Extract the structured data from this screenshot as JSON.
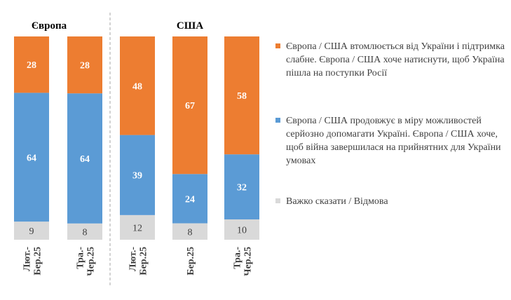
{
  "chart_data": {
    "type": "bar",
    "stacked": true,
    "groups": [
      {
        "title": "Європа",
        "categories": [
          "Лют.-Бер.25",
          "Тра.-Чер.25"
        ]
      },
      {
        "title": "США",
        "categories": [
          "Лют.-Бер.25",
          "Бер.25",
          "Тра.-Чер.25"
        ]
      }
    ],
    "series": [
      {
        "name": "Європа / США продовжує в міру можливостей серйозно допомагати Україні. Європа / США хоче, щоб війна завершилася на прийнятних для України умовах",
        "color": "#5B9BD5",
        "values": [
          64,
          64,
          39,
          24,
          32
        ]
      },
      {
        "name": "Європа / США втомлюється від України і підтримка слабне. Європа / США хоче натиснути, щоб Україна пішла на поступки Росії",
        "color": "#ED7D31",
        "values": [
          28,
          28,
          48,
          67,
          58
        ]
      },
      {
        "name": "Важко сказати / Відмова",
        "color": "#D9D9D9",
        "values": [
          9,
          8,
          12,
          8,
          10
        ]
      }
    ],
    "stack_order_bottom_to_top": [
      "Важко сказати / Відмова",
      "Європа / США продовжує в міру можливостей серйозно допомагати Україні. Європа / США хоче, щоб війна завершилася на прийнятних для України умовах",
      "Європа / США втомлюється від України і підтримка слабне. Європа / США хоче натиснути, щоб Україна пішла на поступки Росії"
    ],
    "ylim": [
      0,
      100
    ],
    "grid": false,
    "legend_position": "right"
  },
  "legend": {
    "orange_label": "Європа / США втомлюється від України і підтримка слабне. Європа / США хоче натиснути, щоб Україна пішла на поступки Росії",
    "blue_label": "Європа / США продовжує в міру можливостей серйозно допомагати Україні. Європа / США хоче, щоб війна завершилася на прийнятних для України умовах",
    "gray_label": "Важко сказати / Відмова"
  }
}
